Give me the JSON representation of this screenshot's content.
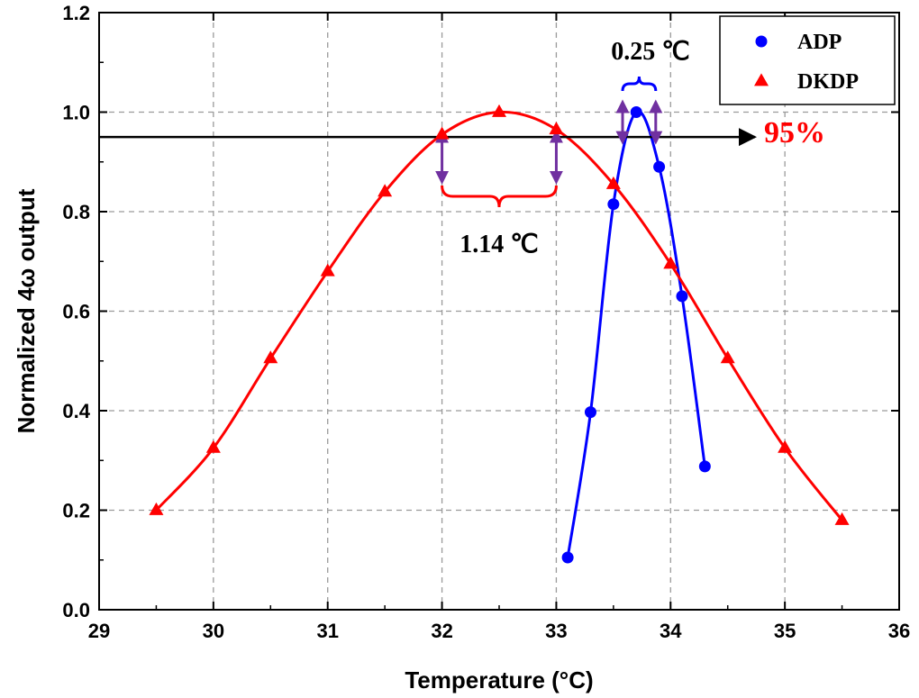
{
  "chart_data": {
    "type": "scatter",
    "xlabel": "Temperature (°C)",
    "ylabel": "Normalized 4ω output",
    "xlim": [
      29,
      36
    ],
    "ylim": [
      0.0,
      1.2
    ],
    "x_ticks": [
      "29",
      "30",
      "31",
      "32",
      "33",
      "34",
      "35",
      "36"
    ],
    "y_ticks": [
      "0.0",
      "0.2",
      "0.4",
      "0.6",
      "0.8",
      "1.0",
      "1.2"
    ],
    "grid": true,
    "legend_position": "top-right",
    "series": [
      {
        "name": "ADP",
        "color": "#0000ff",
        "marker": "circle",
        "x": [
          33.1,
          33.3,
          33.5,
          33.7,
          33.9,
          34.1,
          34.3
        ],
        "y": [
          0.105,
          0.397,
          0.815,
          1.0,
          0.89,
          0.63,
          0.288
        ]
      },
      {
        "name": "DKDP",
        "color": "#ff0000",
        "marker": "triangle",
        "x": [
          29.5,
          30.0,
          30.5,
          31.0,
          31.5,
          32.0,
          32.5,
          33.0,
          33.5,
          34.0,
          34.5,
          35.0,
          35.5
        ],
        "y": [
          0.2,
          0.325,
          0.505,
          0.68,
          0.84,
          0.955,
          1.0,
          0.965,
          0.855,
          0.695,
          0.505,
          0.325,
          0.18
        ]
      }
    ],
    "annotations": {
      "threshold_label": "95%",
      "threshold_value": 0.95,
      "dkdp_width_label": "1.14 ℃",
      "adp_width_label": "0.25 ℃"
    }
  }
}
